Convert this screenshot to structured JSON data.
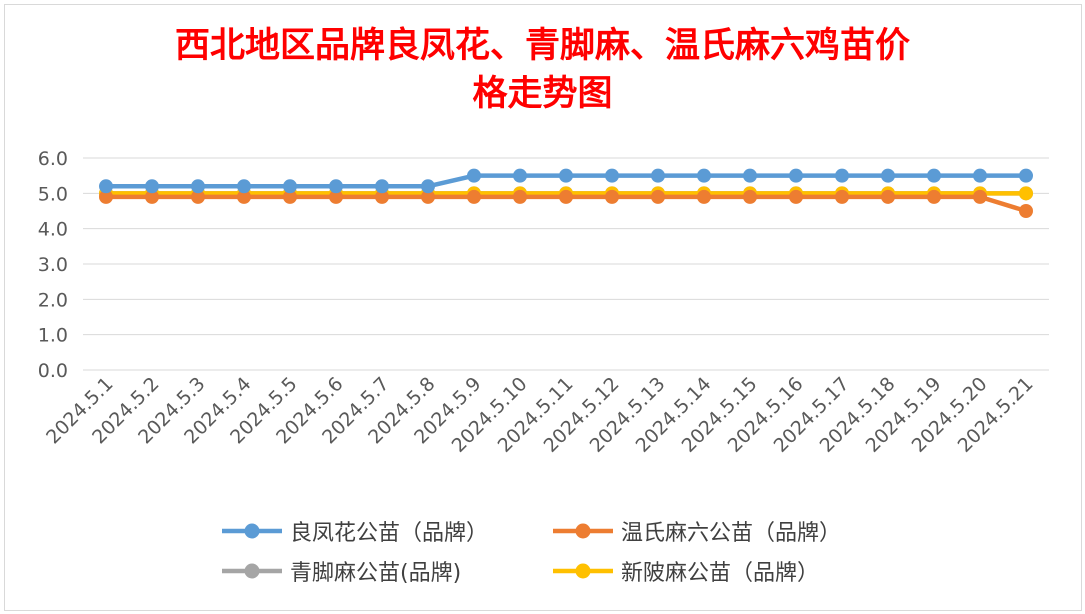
{
  "chart_data": {
    "type": "line",
    "title_lines": [
      "西北地区品牌良凤花、青脚麻、温氏麻六鸡苗价",
      "格走势图"
    ],
    "xlabel": "",
    "ylabel": "",
    "x": [
      "2024.5.1",
      "2024.5.2",
      "2024.5.3",
      "2024.5.4",
      "2024.5.5",
      "2024.5.6",
      "2024.5.7",
      "2024.5.8",
      "2024.5.9",
      "2024.5.10",
      "2024.5.11",
      "2024.5.12",
      "2024.5.13",
      "2024.5.14",
      "2024.5.15",
      "2024.5.16",
      "2024.5.17",
      "2024.5.18",
      "2024.5.19",
      "2024.5.20",
      "2024.5.21"
    ],
    "ylim": [
      0,
      6
    ],
    "yticks": [
      "0.0",
      "1.0",
      "2.0",
      "3.0",
      "4.0",
      "5.0",
      "6.0"
    ],
    "grid": true,
    "legend_position": "bottom",
    "series": [
      {
        "name": "良凤花公苗（品牌）",
        "color": "#5b9bd5",
        "values": [
          5.2,
          5.2,
          5.2,
          5.2,
          5.2,
          5.2,
          5.2,
          5.2,
          5.5,
          5.5,
          5.5,
          5.5,
          5.5,
          5.5,
          5.5,
          5.5,
          5.5,
          5.5,
          5.5,
          5.5,
          5.5
        ]
      },
      {
        "name": "温氏麻六公苗（品牌）",
        "color": "#ed7d31",
        "values": [
          4.9,
          4.9,
          4.9,
          4.9,
          4.9,
          4.9,
          4.9,
          4.9,
          4.9,
          4.9,
          4.9,
          4.9,
          4.9,
          4.9,
          4.9,
          4.9,
          4.9,
          4.9,
          4.9,
          4.9,
          4.5
        ]
      },
      {
        "name": "青脚麻公苗(品牌)",
        "color": "#a5a5a5",
        "values": [
          5.0,
          5.0,
          5.0,
          5.0,
          5.0,
          5.0,
          5.0,
          5.0,
          5.0,
          5.0,
          5.0,
          5.0,
          5.0,
          5.0,
          5.0,
          5.0,
          5.0,
          5.0,
          5.0,
          5.0,
          5.0
        ]
      },
      {
        "name": "新陂麻公苗（品牌）",
        "color": "#ffc000",
        "values": [
          5.0,
          5.0,
          5.0,
          5.0,
          5.0,
          5.0,
          5.0,
          5.0,
          5.0,
          5.0,
          5.0,
          5.0,
          5.0,
          5.0,
          5.0,
          5.0,
          5.0,
          5.0,
          5.0,
          5.0,
          5.0
        ]
      }
    ]
  },
  "colors": {
    "title": "#ff0000",
    "grid": "#d9d9d9",
    "axis_text": "#595959"
  }
}
